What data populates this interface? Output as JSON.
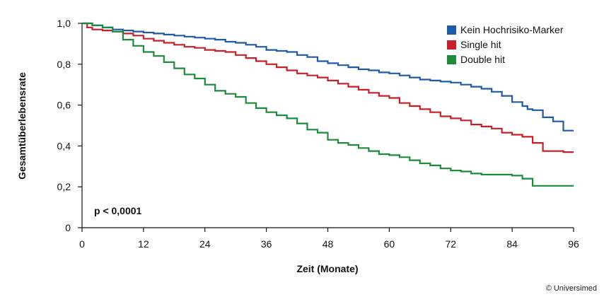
{
  "chart_data": {
    "type": "line",
    "xlabel": "Zeit (Monate)",
    "ylabel": "Gesamtüberlebensrate",
    "xlim": [
      0,
      96
    ],
    "ylim": [
      0,
      1.0
    ],
    "xticks": [
      0,
      12,
      24,
      36,
      48,
      60,
      72,
      84,
      96
    ],
    "xtick_labels": [
      "0",
      "12",
      "24",
      "36",
      "48",
      "60",
      "72",
      "84",
      "96"
    ],
    "yticks": [
      0,
      0.2,
      0.4,
      0.6,
      0.8,
      1.0
    ],
    "ytick_labels": [
      "0",
      "0,2",
      "0,4",
      "0,6",
      "0,8",
      "1,0"
    ],
    "grid": false,
    "legend_position": "top-right",
    "annotation": "p < 0,0001",
    "series": [
      {
        "name": "Kein Hochrisiko-Marker",
        "color": "#1f5aa6",
        "x": [
          0,
          2,
          4,
          6,
          8,
          10,
          12,
          14,
          16,
          18,
          20,
          22,
          24,
          26,
          28,
          30,
          32,
          34,
          36,
          38,
          40,
          42,
          44,
          46,
          48,
          50,
          52,
          54,
          56,
          58,
          60,
          62,
          64,
          66,
          68,
          70,
          72,
          74,
          76,
          78,
          80,
          82,
          84,
          86,
          87,
          88,
          90,
          92,
          94,
          96
        ],
        "y": [
          1.0,
          0.99,
          0.98,
          0.97,
          0.965,
          0.96,
          0.955,
          0.95,
          0.945,
          0.94,
          0.935,
          0.93,
          0.925,
          0.92,
          0.91,
          0.905,
          0.895,
          0.885,
          0.87,
          0.865,
          0.86,
          0.845,
          0.835,
          0.815,
          0.805,
          0.795,
          0.785,
          0.775,
          0.77,
          0.76,
          0.755,
          0.745,
          0.735,
          0.725,
          0.72,
          0.715,
          0.71,
          0.7,
          0.69,
          0.68,
          0.665,
          0.645,
          0.615,
          0.595,
          0.58,
          0.575,
          0.54,
          0.52,
          0.475,
          0.475
        ]
      },
      {
        "name": "Single hit",
        "color": "#c8202a",
        "x": [
          0,
          1,
          2,
          4,
          6,
          8,
          10,
          12,
          14,
          16,
          18,
          20,
          22,
          24,
          26,
          28,
          30,
          32,
          34,
          36,
          38,
          40,
          42,
          44,
          46,
          48,
          50,
          52,
          54,
          56,
          58,
          60,
          62,
          64,
          66,
          68,
          70,
          72,
          74,
          76,
          78,
          80,
          82,
          84,
          86,
          88,
          90,
          92,
          94,
          96
        ],
        "y": [
          1.0,
          0.98,
          0.97,
          0.965,
          0.96,
          0.95,
          0.94,
          0.925,
          0.915,
          0.905,
          0.895,
          0.885,
          0.88,
          0.87,
          0.865,
          0.86,
          0.845,
          0.83,
          0.815,
          0.8,
          0.785,
          0.77,
          0.755,
          0.745,
          0.735,
          0.72,
          0.705,
          0.69,
          0.675,
          0.66,
          0.645,
          0.635,
          0.61,
          0.595,
          0.58,
          0.565,
          0.545,
          0.535,
          0.525,
          0.505,
          0.495,
          0.485,
          0.465,
          0.455,
          0.445,
          0.415,
          0.375,
          0.375,
          0.37,
          0.37
        ]
      },
      {
        "name": "Double hit",
        "color": "#1d8a3c",
        "x": [
          0,
          2,
          4,
          6,
          8,
          10,
          12,
          14,
          16,
          18,
          20,
          22,
          24,
          26,
          28,
          30,
          32,
          34,
          36,
          38,
          40,
          42,
          44,
          46,
          48,
          50,
          52,
          54,
          56,
          58,
          60,
          62,
          64,
          66,
          68,
          70,
          72,
          74,
          76,
          78,
          80,
          82,
          84,
          86,
          88,
          90,
          92,
          94,
          96
        ],
        "y": [
          1.0,
          0.99,
          0.98,
          0.96,
          0.92,
          0.89,
          0.86,
          0.84,
          0.81,
          0.78,
          0.75,
          0.73,
          0.7,
          0.67,
          0.655,
          0.64,
          0.61,
          0.585,
          0.565,
          0.55,
          0.535,
          0.51,
          0.48,
          0.465,
          0.43,
          0.415,
          0.405,
          0.39,
          0.375,
          0.36,
          0.355,
          0.345,
          0.33,
          0.315,
          0.305,
          0.29,
          0.28,
          0.275,
          0.265,
          0.26,
          0.26,
          0.26,
          0.255,
          0.24,
          0.205,
          0.205,
          0.205,
          0.205,
          0.205
        ]
      }
    ]
  },
  "footer": {
    "copyright": "© Universimed"
  }
}
